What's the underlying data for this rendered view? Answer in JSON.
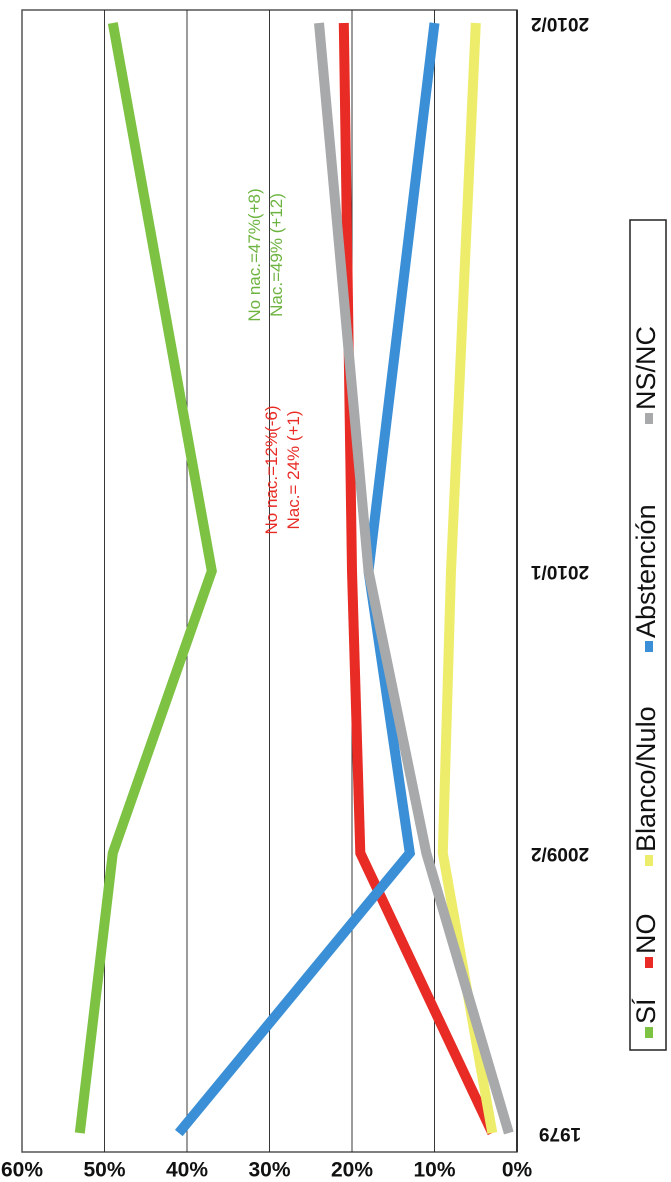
{
  "chart_data": {
    "type": "line",
    "orientation": "rotated-90-clockwise",
    "categories": [
      "1979",
      "2009/2",
      "2010/1",
      "2010/2"
    ],
    "ylim": [
      0,
      60
    ],
    "y_ticks": [
      "0%",
      "10%",
      "20%",
      "30%",
      "40%",
      "50%",
      "60%"
    ],
    "grid": true,
    "legend_placement": "right",
    "series": [
      {
        "name": "SÍ",
        "color": "#7dc242",
        "values": [
          53,
          49,
          37,
          49
        ]
      },
      {
        "name": "NO",
        "color": "#e82b25",
        "values": [
          3,
          19,
          20,
          21
        ]
      },
      {
        "name": "Blanco/Nulo",
        "color": "#eeed6b",
        "values": [
          3,
          9,
          8,
          5
        ]
      },
      {
        "name": "Abstención",
        "color": "#3a8fd6",
        "values": [
          41,
          13,
          18,
          10
        ]
      },
      {
        "name": "NS/NC",
        "color": "#a7a9ab",
        "values": [
          1,
          11,
          18,
          24
        ]
      }
    ],
    "annotations": [
      {
        "lines": [
          "Nac.=49% (+12)",
          "No nac.=47%(+8)"
        ],
        "color": "#6cb33f"
      },
      {
        "lines": [
          "Nac.= 24% (+1)",
          "No nac.=12%(-6)"
        ],
        "color": "#e82b25"
      }
    ]
  }
}
